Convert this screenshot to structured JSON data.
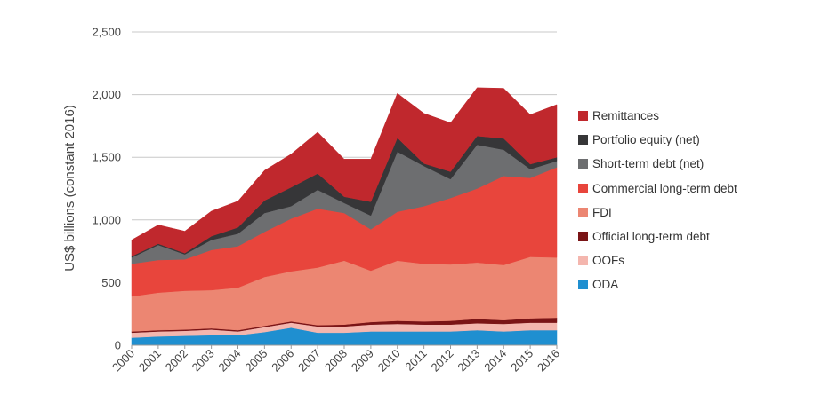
{
  "chart_data": {
    "type": "area",
    "stacked": true,
    "title": "",
    "xlabel": "",
    "ylabel": "US$ billions (constant 2016)",
    "ylim": [
      0,
      2500
    ],
    "yticks": [
      0,
      500,
      1000,
      1500,
      2000,
      2500
    ],
    "ytick_labels": [
      "0",
      "500",
      "1,000",
      "1,500",
      "2,000",
      "2,500"
    ],
    "grid": true,
    "legend_position": "right",
    "x": [
      "2000",
      "2001",
      "2002",
      "2003",
      "2004",
      "2005",
      "2006",
      "2007",
      "2008",
      "2009",
      "2010",
      "2011",
      "2012",
      "2013",
      "2014",
      "2015",
      "2016"
    ],
    "series": [
      {
        "name": "ODA",
        "color": "#1f8fd0",
        "values": [
          60,
          70,
          75,
          80,
          80,
          105,
          140,
          100,
          100,
          110,
          110,
          110,
          110,
          120,
          110,
          120,
          120
        ]
      },
      {
        "name": "OOFs",
        "color": "#f4b6ae",
        "values": [
          40,
          40,
          40,
          45,
          30,
          40,
          40,
          50,
          50,
          55,
          60,
          55,
          55,
          55,
          60,
          60,
          60
        ]
      },
      {
        "name": "Official long-term debt",
        "color": "#7a1416",
        "values": [
          10,
          10,
          10,
          10,
          10,
          10,
          10,
          10,
          15,
          20,
          25,
          25,
          30,
          35,
          30,
          35,
          40
        ]
      },
      {
        "name": "FDI",
        "color": "#ec8672",
        "values": [
          280,
          300,
          310,
          305,
          340,
          390,
          400,
          460,
          510,
          410,
          480,
          460,
          450,
          450,
          440,
          490,
          480
        ]
      },
      {
        "name": "Commercial long-term debt",
        "color": "#e8453c",
        "values": [
          260,
          260,
          250,
          320,
          330,
          360,
          420,
          470,
          380,
          330,
          390,
          460,
          530,
          590,
          710,
          630,
          720
        ]
      },
      {
        "name": "Short-term debt (net)",
        "color": "#6d6e70",
        "values": [
          50,
          120,
          40,
          80,
          100,
          150,
          100,
          150,
          80,
          110,
          480,
          320,
          150,
          350,
          210,
          70,
          50
        ]
      },
      {
        "name": "Portfolio equity (net)",
        "color": "#363638",
        "values": [
          10,
          10,
          10,
          30,
          50,
          100,
          150,
          130,
          50,
          110,
          110,
          20,
          60,
          70,
          90,
          40,
          30
        ]
      },
      {
        "name": "Remittances",
        "color": "#c0282d",
        "values": [
          130,
          150,
          175,
          200,
          210,
          240,
          265,
          330,
          300,
          340,
          355,
          400,
          390,
          385,
          400,
          395,
          420
        ]
      }
    ]
  }
}
